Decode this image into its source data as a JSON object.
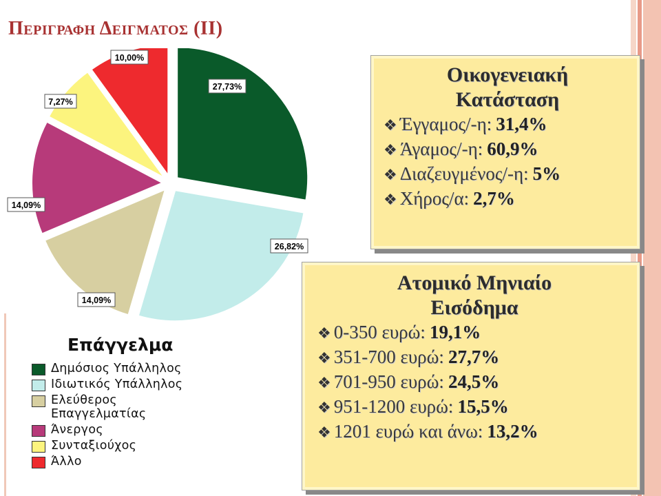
{
  "title": "Περιγραφη Δειγματος (ΙΙ)",
  "colors": {
    "title": "#a83232",
    "panel_bg": "#fdeb9e",
    "stripes": [
      "#f6d6c8",
      "#e89a88",
      "#f3c3b2"
    ]
  },
  "chart_data": {
    "type": "pie",
    "title": "Επάγγελμα",
    "slices": [
      {
        "name": "Δημόσιος Υπάλληλος",
        "value": 27.73,
        "label": "27,73%",
        "color": "#0a5a2a"
      },
      {
        "name": "Ιδιωτικός Υπάλληλος",
        "value": 26.82,
        "label": "26,82%",
        "color": "#c2ecea"
      },
      {
        "name": "Ελεύθερος Επαγγελματίας",
        "value": 14.09,
        "label": "14,09%",
        "color": "#d7cfa1"
      },
      {
        "name": "Άνεργος",
        "value": 14.09,
        "label": "14,09%",
        "color": "#b73a7a"
      },
      {
        "name": "Συνταξιούχος",
        "value": 7.27,
        "label": "7,27%",
        "color": "#fcf47e"
      },
      {
        "name": "Άλλο",
        "value": 10.0,
        "label": "10,00%",
        "color": "#ee2a2e"
      }
    ],
    "legend": {
      "title": "Επάγγελμα",
      "items": [
        {
          "label": "Δημόσιος Υπάλληλος",
          "color": "#0a5a2a"
        },
        {
          "label": "Ιδιωτικός Υπάλληλος",
          "color": "#c2ecea"
        },
        {
          "label": "Ελεύθερος Επαγγελματίας",
          "color": "#d7cfa1"
        },
        {
          "label": "Άνεργος",
          "color": "#b73a7a"
        },
        {
          "label": "Συνταξιούχος",
          "color": "#fcf47e"
        },
        {
          "label": "Άλλο",
          "color": "#ee2a2e"
        }
      ]
    }
  },
  "marital": {
    "title_line1": "Οικογενειακή",
    "title_line2": "Κατάσταση",
    "items": [
      {
        "label": "Έγγαμος/-η:",
        "value": "31,4%"
      },
      {
        "label": "Άγαμος/-η:",
        "value": "60,9%"
      },
      {
        "label": "Διαζευγμένος/-η:",
        "value": "5%"
      },
      {
        "label": "Χήρος/α:",
        "value": "2,7%"
      }
    ]
  },
  "income": {
    "title_line1": "Ατομικό Μηνιαίο",
    "title_line2": "Εισόδημα",
    "items": [
      {
        "label": "0-350 ευρώ:",
        "value": "19,1%"
      },
      {
        "label": "351-700 ευρώ:",
        "value": "27,7%"
      },
      {
        "label": "701-950 ευρώ:",
        "value": "24,5%"
      },
      {
        "label": "951-1200 ευρώ:",
        "value": "15,5%"
      },
      {
        "label": "1201 ευρώ και άνω:",
        "value": "13,2%"
      }
    ]
  },
  "bullet_icon": "diamond-bullet-icon"
}
